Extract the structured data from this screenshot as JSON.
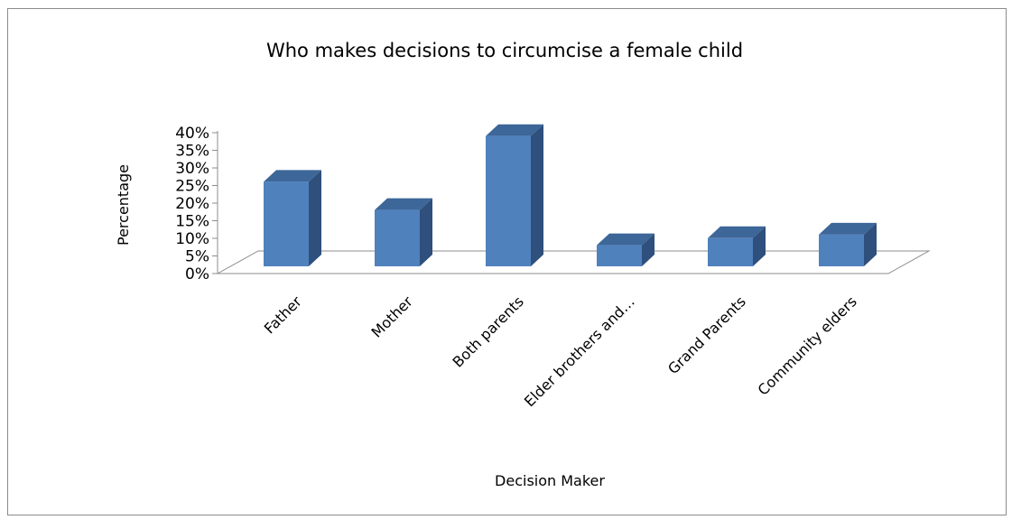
{
  "chart_data": {
    "type": "bar",
    "title": "Who makes decisions to circumcise a female child",
    "xlabel": "Decision Maker",
    "ylabel": "Percentage",
    "categories": [
      "Father",
      "Mother",
      "Both parents",
      "Elder brothers and…",
      "Grand Parents",
      "Community elders"
    ],
    "values": [
      24,
      16,
      37,
      6,
      8,
      9
    ],
    "y_ticks": [
      "0%",
      "5%",
      "10%",
      "15%",
      "20%",
      "25%",
      "30%",
      "35%",
      "40%"
    ],
    "ylim": [
      0,
      40
    ],
    "grid": false,
    "legend": "none",
    "bar_colors": {
      "front": "#4f81bd",
      "side": "#2f4f7c",
      "top": "#3d6699"
    },
    "style": "3d-column"
  }
}
